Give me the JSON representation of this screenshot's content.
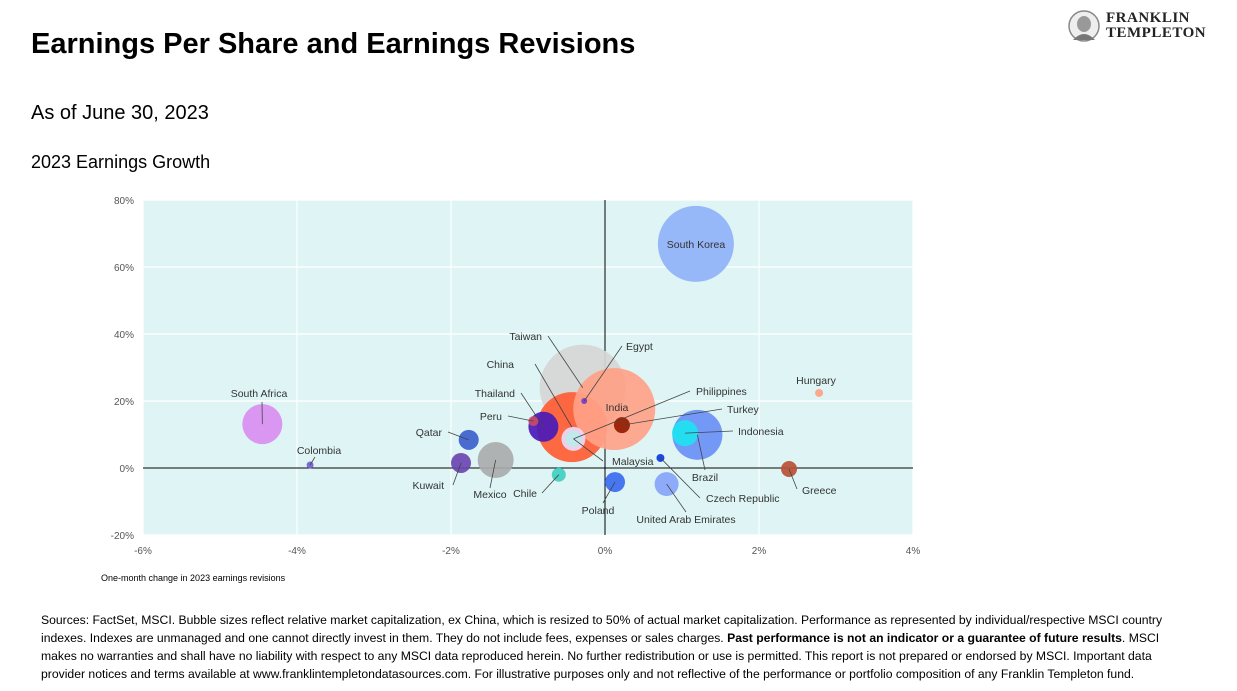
{
  "header": {
    "title": "Earnings Per Share and Earnings Revisions",
    "subtitle": "As of June 30, 2023",
    "logo_line1": "FRANKLIN",
    "logo_line2": "TEMPLETON"
  },
  "chart_data": {
    "type": "scatter",
    "variant": "bubble",
    "title": "2023 Earnings Growth",
    "xlabel": "One-month change in 2023 earnings revisions",
    "ylabel": "",
    "xlim": [
      -6,
      4
    ],
    "ylim": [
      -20,
      80
    ],
    "x_ticks": [
      "-6%",
      "-4%",
      "-2%",
      "0%",
      "2%",
      "4%"
    ],
    "y_ticks": [
      "-20%",
      "0%",
      "20%",
      "40%",
      "60%",
      "80%"
    ],
    "grid": true,
    "background": "#dff5f5",
    "points": [
      {
        "name": "Taiwan",
        "x": -0.29,
        "y": 24,
        "size": 43,
        "color": "#d6d6d6"
      },
      {
        "name": "China",
        "x": -0.43,
        "y": 12.2,
        "size": 35,
        "color": "#ff5c33"
      },
      {
        "name": "India",
        "x": 0.12,
        "y": 17.6,
        "size": 41,
        "color": "#ffa187"
      },
      {
        "name": "South Korea",
        "x": 1.18,
        "y": 66.9,
        "size": 38,
        "color": "#8fb1f7"
      },
      {
        "name": "Brazil",
        "x": 1.2,
        "y": 9.9,
        "size": 25,
        "color": "#6a8ff5"
      },
      {
        "name": "South Africa",
        "x": -4.45,
        "y": 13.1,
        "size": 20,
        "color": "#d88ef0"
      },
      {
        "name": "Mexico",
        "x": -1.42,
        "y": 2.4,
        "size": 18,
        "color": "#a9abab"
      },
      {
        "name": "Thailand",
        "x": -0.8,
        "y": 12.3,
        "size": 15,
        "color": "#4a1ab8"
      },
      {
        "name": "Indonesia",
        "x": 1.04,
        "y": 10.4,
        "size": 13,
        "color": "#1ee3f0"
      },
      {
        "name": "Malaysia",
        "x": -0.41,
        "y": 8.7,
        "size": 12,
        "color": "#ecd9f7"
      },
      {
        "name": "Philippines",
        "x": -0.41,
        "y": 8.7,
        "size": 8,
        "color": "#bdeaea"
      },
      {
        "name": "United Arab Emirates",
        "x": 0.8,
        "y": -4.8,
        "size": 12,
        "color": "#85a4f7"
      },
      {
        "name": "Qatar",
        "x": -1.77,
        "y": 8.4,
        "size": 10,
        "color": "#3c5fcc"
      },
      {
        "name": "Kuwait",
        "x": -1.87,
        "y": 1.5,
        "size": 10,
        "color": "#6a45b0"
      },
      {
        "name": "Poland",
        "x": 0.13,
        "y": -4.2,
        "size": 10,
        "color": "#3a6af0"
      },
      {
        "name": "Turkey",
        "x": 0.22,
        "y": 12.8,
        "size": 8,
        "color": "#951c00"
      },
      {
        "name": "Greece",
        "x": 2.39,
        "y": -0.3,
        "size": 8,
        "color": "#b85035"
      },
      {
        "name": "Chile",
        "x": -0.6,
        "y": -2,
        "size": 7,
        "color": "#3fcfc0"
      },
      {
        "name": "Peru",
        "x": -0.93,
        "y": 14,
        "size": 5,
        "color": "#c94a6a"
      },
      {
        "name": "Egypt",
        "x": -0.27,
        "y": 20,
        "size": 3,
        "color": "#7040c8"
      },
      {
        "name": "Czech Republic",
        "x": 0.72,
        "y": 3,
        "size": 4,
        "color": "#0a38e0"
      },
      {
        "name": "Hungary",
        "x": 2.78,
        "y": 22.4,
        "size": 4,
        "color": "#ff9f85"
      },
      {
        "name": "Colombia",
        "x": -3.83,
        "y": 0.9,
        "size": 3.5,
        "color": "#7060d0"
      }
    ]
  },
  "footer": {
    "text_a": "Sources: FactSet, MSCI. Bubble sizes reflect relative market capitalization, ex China, which is resized to 50% of actual market capitalization. Performance as represented by individual/respective MSCI country indexes. Indexes are unmanaged and one cannot directly invest in them. They do not include fees, expenses or sales charges. ",
    "text_bold": "Past performance is not an indicator or a guarantee of future results",
    "text_b": ". MSCI makes no warranties and shall have no liability with respect to any MSCI data reproduced herein. No further redistribution or use is permitted. This report is not prepared or endorsed by MSCI. Important data provider notices and terms available at www.franklintempletondatasources.com. For illustrative purposes only and not reflective of the performance or portfolio composition of any Franklin Templeton fund."
  }
}
